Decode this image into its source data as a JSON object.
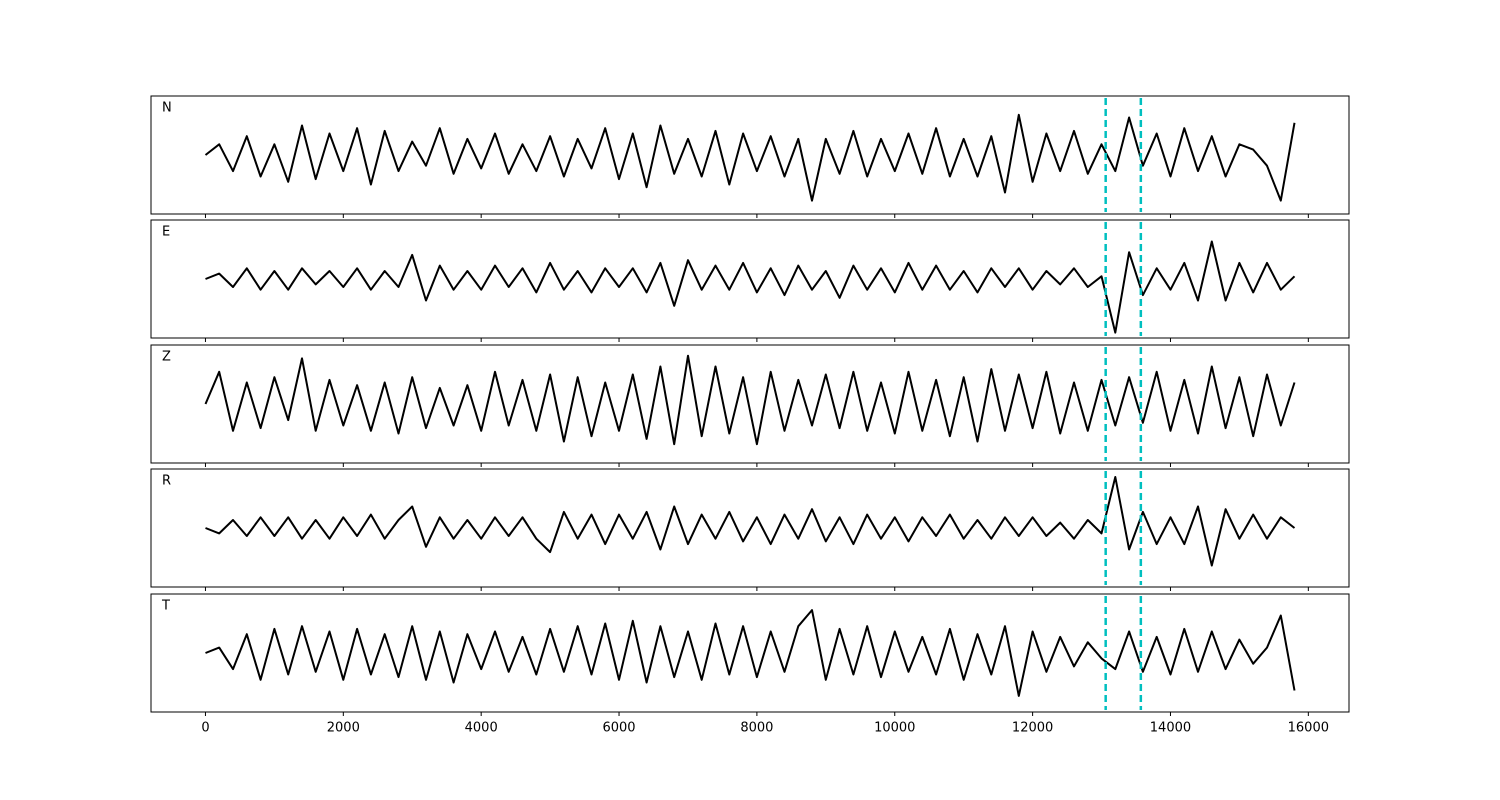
{
  "chart_data": {
    "type": "line",
    "x": [
      0,
      200,
      400,
      600,
      800,
      1000,
      1200,
      1400,
      1600,
      1800,
      2000,
      2200,
      2400,
      2600,
      2800,
      3000,
      3200,
      3400,
      3600,
      3800,
      4000,
      4200,
      4400,
      4600,
      4800,
      5000,
      5200,
      5400,
      5600,
      5800,
      6000,
      6200,
      6400,
      6600,
      6800,
      7000,
      7200,
      7400,
      7600,
      7800,
      8000,
      8200,
      8400,
      8600,
      8800,
      9000,
      9200,
      9400,
      9600,
      9800,
      10000,
      10200,
      10400,
      10600,
      10800,
      11000,
      11200,
      11400,
      11600,
      11800,
      12000,
      12200,
      12400,
      12600,
      12800,
      13000,
      13200,
      13400,
      13600,
      13800,
      14000,
      14200,
      14400,
      14600,
      14800,
      15000,
      15200,
      15400,
      15600,
      15800
    ],
    "series": [
      {
        "name": "N",
        "color": "#000000",
        "values": [
          0.0,
          0.2,
          -0.3,
          0.35,
          -0.4,
          0.2,
          -0.5,
          0.55,
          -0.45,
          0.4,
          -0.3,
          0.5,
          -0.55,
          0.45,
          -0.3,
          0.25,
          -0.2,
          0.5,
          -0.35,
          0.3,
          -0.25,
          0.4,
          -0.35,
          0.2,
          -0.3,
          0.35,
          -0.4,
          0.3,
          -0.25,
          0.5,
          -0.45,
          0.4,
          -0.6,
          0.55,
          -0.35,
          0.3,
          -0.4,
          0.45,
          -0.55,
          0.4,
          -0.3,
          0.35,
          -0.4,
          0.3,
          -0.85,
          0.3,
          -0.35,
          0.45,
          -0.4,
          0.3,
          -0.3,
          0.4,
          -0.35,
          0.5,
          -0.4,
          0.3,
          -0.4,
          0.35,
          -0.7,
          0.75,
          -0.5,
          0.4,
          -0.3,
          0.45,
          -0.35,
          0.2,
          -0.3,
          0.7,
          -0.2,
          0.4,
          -0.4,
          0.5,
          -0.3,
          0.35,
          -0.4,
          0.2,
          0.1,
          -0.2,
          -0.85,
          0.6
        ]
      },
      {
        "name": "E",
        "color": "#000000",
        "values": [
          0.0,
          0.1,
          -0.15,
          0.2,
          -0.2,
          0.15,
          -0.2,
          0.2,
          -0.1,
          0.15,
          -0.15,
          0.2,
          -0.2,
          0.15,
          -0.15,
          0.45,
          -0.4,
          0.25,
          -0.2,
          0.15,
          -0.2,
          0.25,
          -0.15,
          0.2,
          -0.25,
          0.3,
          -0.2,
          0.15,
          -0.25,
          0.2,
          -0.15,
          0.2,
          -0.25,
          0.3,
          -0.5,
          0.35,
          -0.2,
          0.25,
          -0.2,
          0.3,
          -0.25,
          0.2,
          -0.3,
          0.25,
          -0.2,
          0.15,
          -0.35,
          0.25,
          -0.2,
          0.2,
          -0.25,
          0.3,
          -0.2,
          0.25,
          -0.2,
          0.15,
          -0.25,
          0.2,
          -0.15,
          0.2,
          -0.2,
          0.15,
          -0.1,
          0.2,
          -0.15,
          0.05,
          -1.0,
          0.5,
          -0.3,
          0.2,
          -0.2,
          0.3,
          -0.4,
          0.7,
          -0.4,
          0.3,
          -0.25,
          0.3,
          -0.2,
          0.05
        ]
      },
      {
        "name": "Z",
        "color": "#000000",
        "values": [
          0.0,
          0.6,
          -0.5,
          0.4,
          -0.45,
          0.5,
          -0.3,
          0.85,
          -0.5,
          0.45,
          -0.4,
          0.35,
          -0.5,
          0.4,
          -0.55,
          0.5,
          -0.45,
          0.3,
          -0.4,
          0.35,
          -0.5,
          0.6,
          -0.4,
          0.45,
          -0.5,
          0.55,
          -0.7,
          0.5,
          -0.6,
          0.4,
          -0.5,
          0.55,
          -0.65,
          0.7,
          -0.75,
          0.9,
          -0.6,
          0.7,
          -0.55,
          0.5,
          -0.75,
          0.6,
          -0.5,
          0.45,
          -0.4,
          0.55,
          -0.45,
          0.6,
          -0.5,
          0.4,
          -0.55,
          0.6,
          -0.5,
          0.45,
          -0.6,
          0.5,
          -0.7,
          0.65,
          -0.5,
          0.55,
          -0.45,
          0.6,
          -0.55,
          0.4,
          -0.5,
          0.45,
          -0.4,
          0.5,
          -0.35,
          0.6,
          -0.5,
          0.45,
          -0.55,
          0.7,
          -0.45,
          0.5,
          -0.6,
          0.55,
          -0.4,
          0.4
        ]
      },
      {
        "name": "R",
        "color": "#000000",
        "values": [
          0.0,
          -0.1,
          0.15,
          -0.15,
          0.2,
          -0.15,
          0.2,
          -0.2,
          0.15,
          -0.2,
          0.2,
          -0.15,
          0.25,
          -0.2,
          0.15,
          0.4,
          -0.35,
          0.2,
          -0.2,
          0.15,
          -0.2,
          0.2,
          -0.15,
          0.2,
          -0.2,
          -0.45,
          0.3,
          -0.2,
          0.25,
          -0.3,
          0.25,
          -0.2,
          0.3,
          -0.4,
          0.4,
          -0.3,
          0.25,
          -0.2,
          0.3,
          -0.25,
          0.2,
          -0.3,
          0.25,
          -0.2,
          0.35,
          -0.25,
          0.2,
          -0.3,
          0.25,
          -0.2,
          0.2,
          -0.25,
          0.2,
          -0.15,
          0.25,
          -0.2,
          0.15,
          -0.2,
          0.2,
          -0.15,
          0.2,
          -0.15,
          0.1,
          -0.2,
          0.15,
          -0.1,
          0.95,
          -0.4,
          0.3,
          -0.3,
          0.2,
          -0.3,
          0.4,
          -0.7,
          0.35,
          -0.2,
          0.25,
          -0.2,
          0.2,
          0.0
        ]
      },
      {
        "name": "T",
        "color": "#000000",
        "values": [
          0.0,
          0.1,
          -0.3,
          0.35,
          -0.5,
          0.45,
          -0.4,
          0.5,
          -0.35,
          0.4,
          -0.5,
          0.45,
          -0.4,
          0.35,
          -0.45,
          0.5,
          -0.5,
          0.4,
          -0.55,
          0.35,
          -0.3,
          0.4,
          -0.35,
          0.3,
          -0.4,
          0.45,
          -0.35,
          0.5,
          -0.4,
          0.55,
          -0.5,
          0.6,
          -0.55,
          0.5,
          -0.45,
          0.4,
          -0.5,
          0.55,
          -0.4,
          0.5,
          -0.45,
          0.4,
          -0.35,
          0.5,
          0.8,
          -0.5,
          0.45,
          -0.4,
          0.5,
          -0.45,
          0.4,
          -0.35,
          0.3,
          -0.4,
          0.45,
          -0.5,
          0.35,
          -0.4,
          0.5,
          -0.8,
          0.4,
          -0.35,
          0.3,
          -0.25,
          0.2,
          -0.1,
          -0.3,
          0.4,
          -0.35,
          0.3,
          -0.4,
          0.45,
          -0.35,
          0.4,
          -0.3,
          0.25,
          -0.2,
          0.1,
          0.7,
          -0.7
        ]
      }
    ],
    "xlim": [
      -790,
      16590
    ],
    "ylim": [
      -1.1,
      1.1
    ],
    "xticks": [
      0,
      2000,
      4000,
      6000,
      8000,
      10000,
      12000,
      14000,
      16000
    ],
    "vlines": {
      "x": [
        13060,
        13570
      ],
      "color": "#00bfbf"
    }
  }
}
